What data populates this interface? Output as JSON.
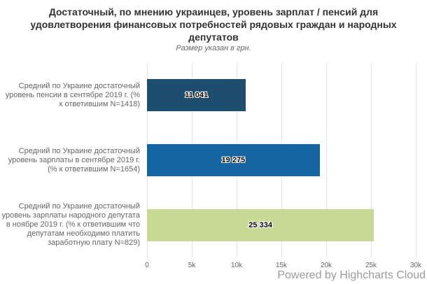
{
  "chart_data": {
    "type": "bar",
    "orientation": "horizontal",
    "title": "Достаточный, по мнению украинцев, уровень зарплат / пенсий для удовлетворения финансовых потребностей рядовых граждан и народных депутатов",
    "subtitle": "Размер указан в грн.",
    "categories": [
      "Средний по Украине достаточный уровень пенсии в сентябре 2019 г. (% к ответившим N=1418)",
      "Средний по Украине достаточный уровень зарплаты в сентябре 2019 г. (% к ответившим N=1654)",
      "Средний по Украине достаточный уровень зарплаты народного депутата в ноябре 2019 г. (% к ответившим что депутатам необходимо платить заработную плату N=829)"
    ],
    "values": [
      11041,
      19275,
      25334
    ],
    "value_labels": [
      "11 041",
      "19 275",
      "25 334"
    ],
    "bar_colors": [
      "#1d4e6e",
      "#1565a3",
      "#c7db96"
    ],
    "xlabel": "",
    "ylabel": "",
    "xlim": [
      0,
      30000
    ],
    "x_ticks": [
      {
        "value": 0,
        "label": "0"
      },
      {
        "value": 5000,
        "label": "5k"
      },
      {
        "value": 10000,
        "label": "10k"
      },
      {
        "value": 15000,
        "label": "15k"
      },
      {
        "value": 20000,
        "label": "20k"
      },
      {
        "value": 25000,
        "label": "25k"
      },
      {
        "value": 30000,
        "label": "30k"
      }
    ],
    "grid": true,
    "legend": false,
    "gridline_color": "#e6e6e6",
    "axis_label_color": "#666666",
    "category_label_color": "#666666",
    "title_color": "#333333",
    "subtitle_color": "#666666",
    "data_label_color": "#000000"
  },
  "credit": {
    "label": "Powered by Highcharts Cloud",
    "color": "#9b9b9b"
  }
}
